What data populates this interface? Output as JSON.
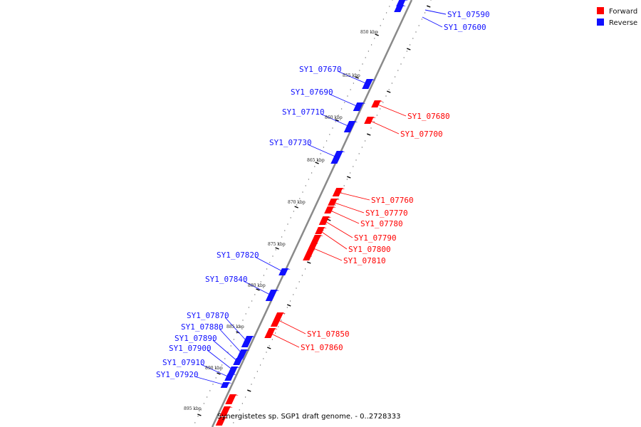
{
  "legend": {
    "forward_label": "Forward",
    "reverse_label": "Reverse",
    "forward_color": "#ff0000",
    "reverse_color": "#1010ff"
  },
  "caption": "Synergistetes sp. SGP1 draft genome. - 0..2728333",
  "ticks": [
    "850 kbp",
    "855 kbp",
    "860 kbp",
    "865 kbp",
    "870 kbp",
    "875 kbp",
    "880 kbp",
    "885 kbp",
    "890 kbp",
    "895 kbp"
  ],
  "forward_genes": [
    "SY1_07680",
    "SY1_07700",
    "SY1_07760",
    "SY1_07770",
    "SY1_07780",
    "SY1_07790",
    "SY1_07800",
    "SY1_07810",
    "SY1_07850",
    "SY1_07860"
  ],
  "reverse_genes": [
    "SY1_07590",
    "SY1_07600",
    "SY1_07670",
    "SY1_07690",
    "SY1_07710",
    "SY1_07730",
    "SY1_07820",
    "SY1_07840",
    "SY1_07870",
    "SY1_07880",
    "SY1_07890",
    "SY1_07900",
    "SY1_07910",
    "SY1_07920"
  ]
}
